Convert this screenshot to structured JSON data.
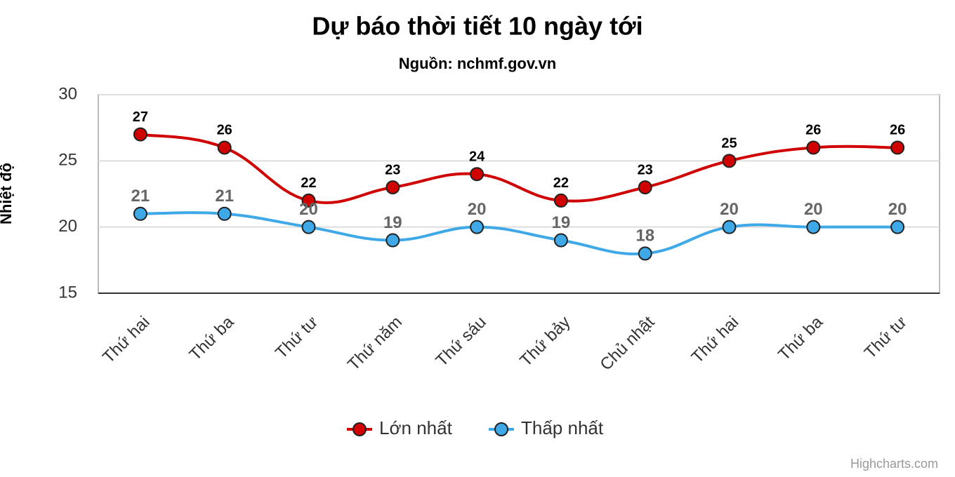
{
  "chart_data": {
    "type": "line",
    "title": "Dự báo thời tiết 10 ngày tới",
    "subtitle": "Nguồn: nchmf.gov.vn",
    "y_label": "Nhiệt độ",
    "credits": "Highcharts.com",
    "categories": [
      "Thứ hai",
      "Thứ ba",
      "Thứ tư",
      "Thứ năm",
      "Thứ sáu",
      "Thứ bảy",
      "Chủ nhật",
      "Thứ hai",
      "Thứ ba",
      "Thứ tư"
    ],
    "series": [
      {
        "name": "Lớn nhất",
        "color": "#d00000",
        "values": [
          27,
          26,
          22,
          23,
          24,
          22,
          23,
          25,
          26,
          26
        ]
      },
      {
        "name": "Thấp nhất",
        "color": "#3fa9e8",
        "values": [
          21,
          21,
          20,
          19,
          20,
          19,
          18,
          20,
          20,
          20
        ]
      }
    ],
    "ylim": [
      15,
      30
    ],
    "yticks": [
      15,
      20,
      25,
      30
    ],
    "grid": true,
    "legend": "bottom"
  }
}
